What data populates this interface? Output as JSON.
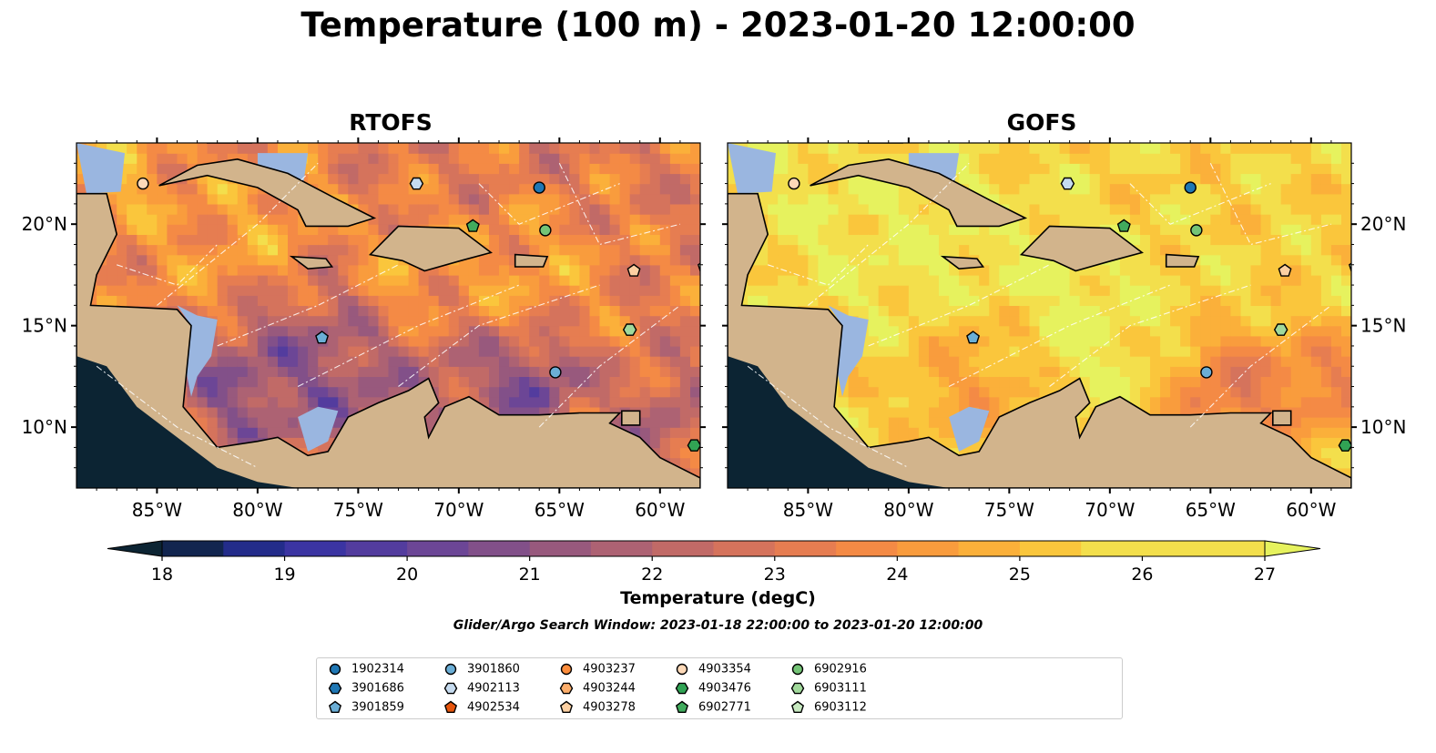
{
  "title": "Temperature (100 m) - 2023-01-20 12:00:00",
  "panels": [
    {
      "title": "RTOFS"
    },
    {
      "title": "GOFS"
    }
  ],
  "colors": {
    "land": "#d2b48c",
    "shallow": "#9ab6e0",
    "deep_land": "#0c2433",
    "colorbar": [
      "#0c2433",
      "#12254f",
      "#232c8a",
      "#3b34a2",
      "#533c9e",
      "#6c4696",
      "#825089",
      "#98597d",
      "#ad6273",
      "#c16a67",
      "#d5735c",
      "#e67d51",
      "#f48a45",
      "#f99c3d",
      "#fbb03a",
      "#fac63c",
      "#f3df4c",
      "#e6f25e"
    ]
  },
  "chart_data": {
    "type": "heatmap",
    "variable": "Temperature",
    "depth": "100 m",
    "time": "2023-01-20 12:00:00",
    "panels": [
      "RTOFS",
      "GOFS"
    ],
    "xlim": [
      -89,
      -58
    ],
    "ylim": [
      7,
      24
    ],
    "x_ticks": [
      {
        "value": -85,
        "label": "85°W"
      },
      {
        "value": -80,
        "label": "80°W"
      },
      {
        "value": -75,
        "label": "75°W"
      },
      {
        "value": -70,
        "label": "70°W"
      },
      {
        "value": -65,
        "label": "65°W"
      },
      {
        "value": -60,
        "label": "60°W"
      }
    ],
    "y_ticks": [
      {
        "value": 20,
        "label": "20°N"
      },
      {
        "value": 15,
        "label": "15°N"
      },
      {
        "value": 10,
        "label": "10°N"
      }
    ],
    "colorbar": {
      "min": 18,
      "max": 27,
      "step": 0.5,
      "ticks": [
        18,
        19,
        20,
        21,
        22,
        23,
        24,
        25,
        26,
        27
      ],
      "label": "Temperature (degC)",
      "extend": "both"
    },
    "subtitle": "Glider/Argo Search Window: 2023-01-18 22:00:00 to 2023-01-20 12:00:00",
    "floats": [
      {
        "id": "1902314",
        "marker": "circle",
        "color": "#1f77b4",
        "lon": -66.0,
        "lat": 21.8
      },
      {
        "id": "3901686",
        "marker": "hexagon",
        "color": "#1f77b4"
      },
      {
        "id": "3901859",
        "marker": "pentagon",
        "color": "#6baed6",
        "lon": -76.8,
        "lat": 14.4
      },
      {
        "id": "3901860",
        "marker": "circle",
        "color": "#6baed6",
        "lon": -65.2,
        "lat": 12.7
      },
      {
        "id": "4902113",
        "marker": "hexagon",
        "color": "#c6dbef",
        "lon": -72.1,
        "lat": 22.0
      },
      {
        "id": "4902534",
        "marker": "pentagon",
        "color": "#e6550d"
      },
      {
        "id": "4903237",
        "marker": "circle",
        "color": "#fd8d3c"
      },
      {
        "id": "4903244",
        "marker": "hexagon",
        "color": "#fdae6b"
      },
      {
        "id": "4903278",
        "marker": "pentagon",
        "color": "#fdd0a2",
        "lon": -61.3,
        "lat": 17.7
      },
      {
        "id": "4903354",
        "marker": "circle",
        "color": "#fdd9b8",
        "lon": -85.7,
        "lat": 22.0
      },
      {
        "id": "4903476",
        "marker": "hexagon",
        "color": "#31a354",
        "lon": -58.3,
        "lat": 9.1
      },
      {
        "id": "6902771",
        "marker": "pentagon",
        "color": "#41ab5d",
        "lon": -69.3,
        "lat": 19.9
      },
      {
        "id": "6902916",
        "marker": "circle",
        "color": "#74c476",
        "lon": -65.7,
        "lat": 19.7
      },
      {
        "id": "6903111",
        "marker": "hexagon",
        "color": "#a1d99b",
        "lon": -61.5,
        "lat": 14.8
      },
      {
        "id": "6903112",
        "marker": "pentagon",
        "color": "#c7e9c0",
        "lon": -57.8,
        "lat": 17.9
      }
    ]
  }
}
